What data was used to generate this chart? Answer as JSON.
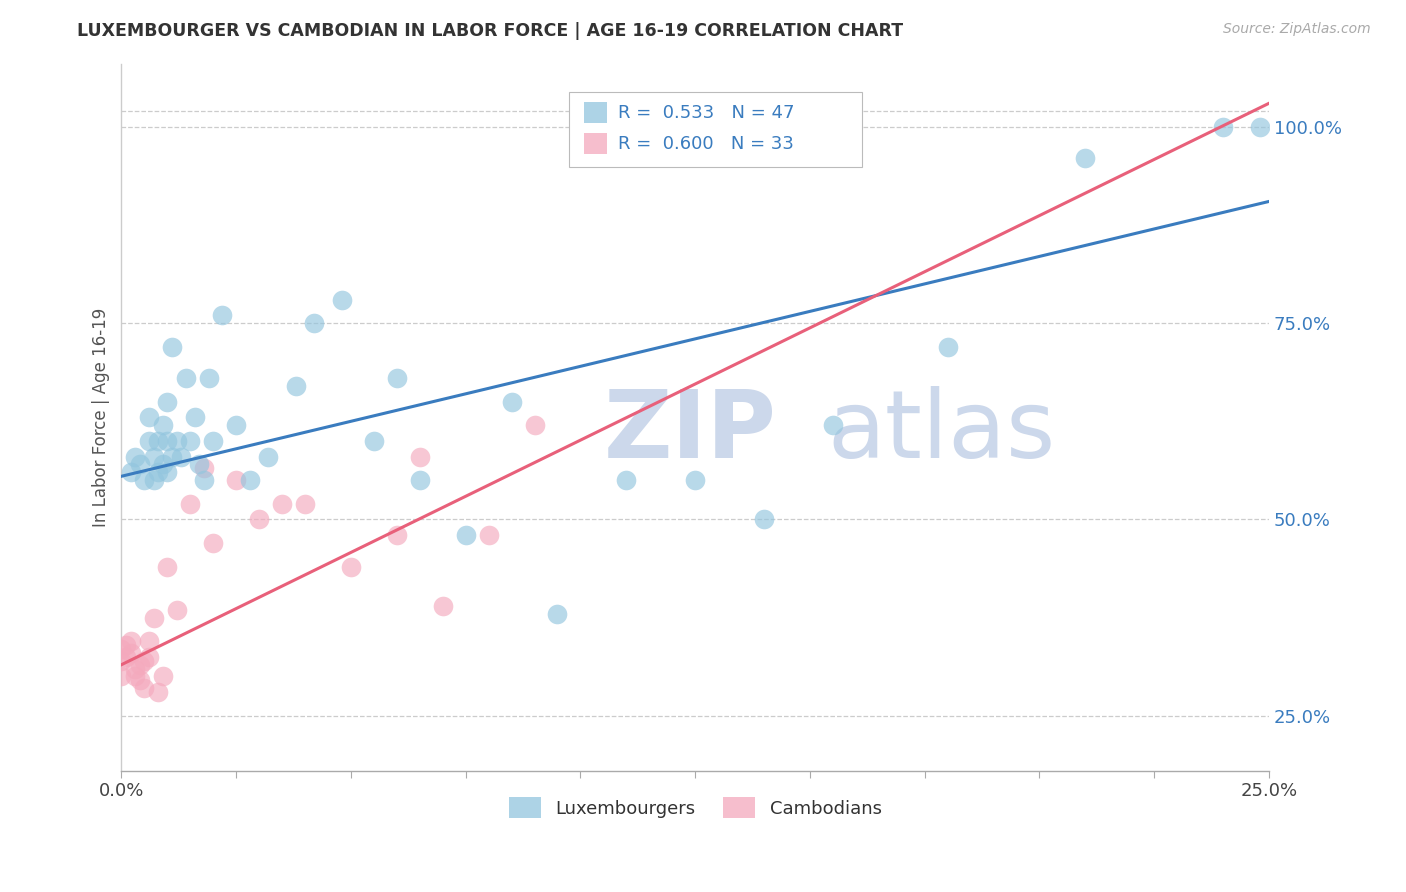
{
  "title": "LUXEMBOURGER VS CAMBODIAN IN LABOR FORCE | AGE 16-19 CORRELATION CHART",
  "source": "Source: ZipAtlas.com",
  "ylabel": "In Labor Force | Age 16-19",
  "x_min": 0.0,
  "x_max": 0.25,
  "y_min": 0.18,
  "y_max": 1.08,
  "x_ticks": [
    0.0,
    0.025,
    0.05,
    0.075,
    0.1,
    0.125,
    0.15,
    0.175,
    0.2,
    0.225,
    0.25
  ],
  "y_ticks_right": [
    0.25,
    0.5,
    0.75,
    1.0
  ],
  "y_tick_labels_right": [
    "25.0%",
    "50.0%",
    "75.0%",
    "100.0%"
  ],
  "legend_R_blue": "R =  0.533",
  "legend_N_blue": "N = 47",
  "legend_R_pink": "R =  0.600",
  "legend_N_pink": "N = 33",
  "blue_color": "#92c5de",
  "pink_color": "#f4a9bd",
  "blue_line_color": "#3a7cbf",
  "pink_line_color": "#e8607a",
  "watermark_zip": "ZIP",
  "watermark_atlas": "atlas",
  "watermark_color": "#ccd8eb",
  "blue_label": "Luxembourgers",
  "pink_label": "Cambodians",
  "blue_line_x0": 0.0,
  "blue_line_y0": 0.555,
  "blue_line_x1": 0.25,
  "blue_line_y1": 0.905,
  "pink_line_x0": 0.0,
  "pink_line_y0": 0.315,
  "pink_line_x1": 0.25,
  "pink_line_y1": 1.03,
  "blue_x": [
    0.002,
    0.003,
    0.004,
    0.005,
    0.006,
    0.006,
    0.007,
    0.007,
    0.008,
    0.008,
    0.009,
    0.009,
    0.01,
    0.01,
    0.01,
    0.011,
    0.011,
    0.012,
    0.013,
    0.014,
    0.015,
    0.016,
    0.017,
    0.018,
    0.019,
    0.02,
    0.022,
    0.025,
    0.028,
    0.032,
    0.038,
    0.042,
    0.048,
    0.055,
    0.06,
    0.065,
    0.075,
    0.085,
    0.095,
    0.11,
    0.125,
    0.14,
    0.155,
    0.18,
    0.21,
    0.24,
    0.248
  ],
  "blue_y": [
    0.56,
    0.58,
    0.57,
    0.55,
    0.6,
    0.63,
    0.58,
    0.55,
    0.56,
    0.6,
    0.62,
    0.57,
    0.56,
    0.6,
    0.65,
    0.58,
    0.72,
    0.6,
    0.58,
    0.68,
    0.6,
    0.63,
    0.57,
    0.55,
    0.68,
    0.6,
    0.76,
    0.62,
    0.55,
    0.58,
    0.67,
    0.75,
    0.78,
    0.6,
    0.68,
    0.55,
    0.48,
    0.65,
    0.38,
    0.55,
    0.55,
    0.5,
    0.62,
    0.72,
    0.96,
    1.0,
    1.0
  ],
  "pink_x": [
    0.0,
    0.0,
    0.0,
    0.001,
    0.001,
    0.002,
    0.002,
    0.003,
    0.003,
    0.004,
    0.004,
    0.005,
    0.005,
    0.006,
    0.006,
    0.007,
    0.008,
    0.009,
    0.01,
    0.012,
    0.015,
    0.018,
    0.02,
    0.025,
    0.03,
    0.035,
    0.04,
    0.05,
    0.06,
    0.065,
    0.07,
    0.08,
    0.09
  ],
  "pink_y": [
    0.335,
    0.32,
    0.3,
    0.34,
    0.325,
    0.33,
    0.345,
    0.31,
    0.3,
    0.315,
    0.295,
    0.32,
    0.285,
    0.325,
    0.345,
    0.375,
    0.28,
    0.3,
    0.44,
    0.385,
    0.52,
    0.565,
    0.47,
    0.55,
    0.5,
    0.52,
    0.52,
    0.44,
    0.48,
    0.58,
    0.39,
    0.48,
    0.62
  ]
}
